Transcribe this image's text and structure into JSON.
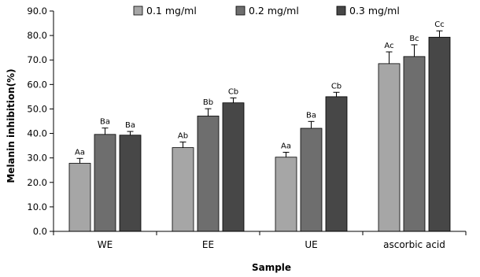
{
  "chart_data": {
    "type": "bar",
    "title": "",
    "xlabel": "Sample",
    "ylabel": "Melanin inhibition(%)",
    "ylim": [
      0,
      90
    ],
    "yticks": [
      "0.0",
      "10.0",
      "20.0",
      "30.0",
      "40.0",
      "50.0",
      "60.0",
      "70.0",
      "80.0",
      "90.0"
    ],
    "categories": [
      "WE",
      "EE",
      "UE",
      "ascorbic acid"
    ],
    "legend_position": "top",
    "grid": false,
    "series": [
      {
        "name": "0.1 mg/ml",
        "color": "#a6a6a6",
        "values": [
          27.8,
          34.2,
          30.3,
          68.5
        ],
        "errors": [
          2.0,
          2.3,
          2.0,
          4.8
        ],
        "labels": [
          "Aa",
          "Ab",
          "Aa",
          "Ac"
        ]
      },
      {
        "name": "0.2 mg/ml",
        "color": "#6e6e6e",
        "values": [
          39.6,
          47.1,
          42.1,
          71.4
        ],
        "errors": [
          2.6,
          3.0,
          2.8,
          4.8
        ],
        "labels": [
          "Ba",
          "Bb",
          "Ba",
          "Bc"
        ]
      },
      {
        "name": "0.3 mg/ml",
        "color": "#474747",
        "values": [
          39.3,
          52.5,
          55.0,
          79.3
        ],
        "errors": [
          1.5,
          2.0,
          1.8,
          2.6
        ],
        "labels": [
          "Ba",
          "Cb",
          "Cb",
          "Cc"
        ]
      }
    ]
  }
}
